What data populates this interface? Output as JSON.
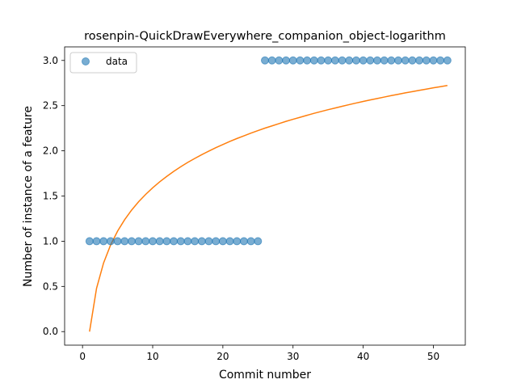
{
  "chart_data": {
    "type": "scatter",
    "title": "rosenpin-QuickDrawEverywhere_companion_object-logarithm",
    "xlabel": "Commit number",
    "ylabel": "Number of instance of a feature",
    "xlim": [
      -2.55,
      54.55
    ],
    "ylim": [
      -0.15,
      3.15
    ],
    "xticks": [
      0,
      10,
      20,
      30,
      40,
      50
    ],
    "yticks": [
      0.0,
      0.5,
      1.0,
      1.5,
      2.0,
      2.5,
      3.0
    ],
    "xtick_labels": [
      "0",
      "10",
      "20",
      "30",
      "40",
      "50"
    ],
    "ytick_labels": [
      "0.0",
      "0.5",
      "1.0",
      "1.5",
      "2.0",
      "2.5",
      "3.0"
    ],
    "legend": {
      "position": "top-left",
      "entries": [
        "data"
      ]
    },
    "grid": false,
    "series": [
      {
        "name": "data",
        "kind": "scatter",
        "color": "#1f77b4",
        "x": [
          1,
          2,
          3,
          4,
          5,
          6,
          7,
          8,
          9,
          10,
          11,
          12,
          13,
          14,
          15,
          16,
          17,
          18,
          19,
          20,
          21,
          22,
          23,
          24,
          25,
          26,
          27,
          28,
          29,
          30,
          31,
          32,
          33,
          34,
          35,
          36,
          37,
          38,
          39,
          40,
          41,
          42,
          43,
          44,
          45,
          46,
          47,
          48,
          49,
          50,
          51,
          52
        ],
        "y": [
          1,
          1,
          1,
          1,
          1,
          1,
          1,
          1,
          1,
          1,
          1,
          1,
          1,
          1,
          1,
          1,
          1,
          1,
          1,
          1,
          1,
          1,
          1,
          1,
          1,
          3,
          3,
          3,
          3,
          3,
          3,
          3,
          3,
          3,
          3,
          3,
          3,
          3,
          3,
          3,
          3,
          3,
          3,
          3,
          3,
          3,
          3,
          3,
          3,
          3,
          3,
          3
        ]
      },
      {
        "kind": "line",
        "color": "#ff7f0e",
        "x": [
          1,
          2,
          3,
          4,
          5,
          6,
          7,
          8,
          9,
          10,
          11,
          12,
          13,
          14,
          15,
          16,
          17,
          18,
          19,
          20,
          21,
          22,
          23,
          24,
          25,
          26,
          27,
          28,
          29,
          30,
          31,
          32,
          33,
          34,
          35,
          36,
          37,
          38,
          39,
          40,
          41,
          42,
          43,
          44,
          45,
          46,
          47,
          48,
          49,
          50,
          51,
          52
        ],
        "y": [
          0.0,
          0.479,
          0.759,
          0.958,
          1.112,
          1.238,
          1.345,
          1.437,
          1.518,
          1.591,
          1.657,
          1.717,
          1.773,
          1.824,
          1.872,
          1.916,
          1.958,
          1.997,
          2.035,
          2.07,
          2.104,
          2.136,
          2.166,
          2.196,
          2.224,
          2.251,
          2.276,
          2.301,
          2.326,
          2.349,
          2.371,
          2.393,
          2.415,
          2.435,
          2.455,
          2.474,
          2.493,
          2.511,
          2.529,
          2.546,
          2.563,
          2.579,
          2.595,
          2.611,
          2.626,
          2.641,
          2.655,
          2.669,
          2.683,
          2.697,
          2.71,
          2.723
        ]
      }
    ]
  }
}
